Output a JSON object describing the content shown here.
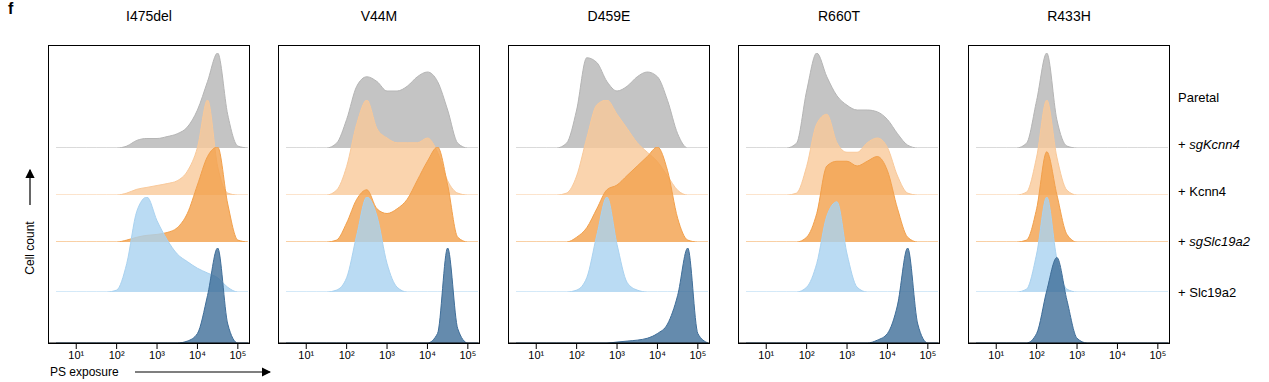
{
  "figure": {
    "panel_label": "f",
    "x_label": "PS exposure",
    "y_label": "Cell count"
  },
  "chart_data": [
    {
      "type": "area",
      "title": "I475del",
      "log": "x",
      "tick_labels": "x",
      "x": [
        3.16,
        5.62,
        10,
        17.8,
        31.6,
        56.2,
        100,
        178,
        316,
        562,
        1000,
        1778,
        3162,
        5623,
        10000,
        17783,
        31623,
        56234,
        100000,
        177828
      ],
      "xlim": [
        2,
        200000
      ],
      "xticks": [
        {
          "value": 10,
          "label": "10¹"
        },
        {
          "value": 100,
          "label": "10²"
        },
        {
          "value": 1000,
          "label": "10³"
        },
        {
          "value": 10000,
          "label": "10⁴"
        },
        {
          "value": 100000,
          "label": "10⁵"
        }
      ],
      "ylim": [
        0,
        1
      ],
      "series": [
        {
          "name": "Paretal",
          "color": "#b5b5b5",
          "values": [
            0,
            0,
            0,
            0,
            0,
            0,
            0,
            0.02,
            0.08,
            0.1,
            0.1,
            0.12,
            0.15,
            0.22,
            0.4,
            0.7,
            1,
            0.35,
            0.02,
            0
          ]
        },
        {
          "name": "+ sgKcnn4",
          "color": "#f9c99a",
          "values": [
            0,
            0,
            0,
            0,
            0,
            0,
            0,
            0.02,
            0.06,
            0.08,
            0.1,
            0.12,
            0.15,
            0.25,
            0.5,
            1,
            0.3,
            0.02,
            0,
            0
          ]
        },
        {
          "name": "+ Kcnn4",
          "color": "#f2a04b",
          "values": [
            0,
            0,
            0,
            0,
            0,
            0,
            0,
            0.02,
            0.05,
            0.07,
            0.08,
            0.1,
            0.15,
            0.3,
            0.6,
            0.9,
            1,
            0.4,
            0.02,
            0
          ]
        },
        {
          "name": "+ sgSlc19a2",
          "color": "#a9d2f0",
          "values": [
            0,
            0,
            0,
            0,
            0,
            0,
            0.02,
            0.3,
            0.85,
            1,
            0.75,
            0.55,
            0.4,
            0.32,
            0.25,
            0.2,
            0.15,
            0.05,
            0,
            0
          ]
        },
        {
          "name": "+ Slc19a2",
          "color": "#3f6e99",
          "values": [
            0,
            0,
            0,
            0,
            0,
            0,
            0,
            0,
            0,
            0,
            0,
            0,
            0,
            0.02,
            0.1,
            0.5,
            1,
            0.2,
            0,
            0
          ]
        }
      ]
    },
    {
      "type": "area",
      "title": "V44M",
      "log": "x",
      "tick_labels": "x",
      "x": [
        3.16,
        5.62,
        10,
        17.8,
        31.6,
        56.2,
        100,
        178,
        316,
        562,
        1000,
        1778,
        3162,
        5623,
        10000,
        17783,
        31623,
        56234,
        100000,
        177828
      ],
      "xlim": [
        2,
        200000
      ],
      "xticks": [
        {
          "value": 10,
          "label": "10¹"
        },
        {
          "value": 100,
          "label": "10²"
        },
        {
          "value": 1000,
          "label": "10³"
        },
        {
          "value": 10000,
          "label": "10⁴"
        },
        {
          "value": 100000,
          "label": "10⁵"
        }
      ],
      "ylim": [
        0,
        1
      ],
      "series": [
        {
          "name": "Paretal",
          "color": "#b5b5b5",
          "values": [
            0,
            0,
            0,
            0,
            0,
            0.05,
            0.3,
            0.65,
            0.75,
            0.7,
            0.6,
            0.6,
            0.65,
            0.75,
            0.8,
            0.7,
            0.4,
            0.05,
            0,
            0
          ]
        },
        {
          "name": "+ sgKcnn4",
          "color": "#f9c99a",
          "values": [
            0,
            0,
            0,
            0,
            0,
            0.05,
            0.3,
            0.75,
            1,
            0.7,
            0.6,
            0.55,
            0.55,
            0.55,
            0.6,
            0.45,
            0.15,
            0.02,
            0,
            0
          ]
        },
        {
          "name": "+ Kcnn4",
          "color": "#f2a04b",
          "values": [
            0,
            0,
            0,
            0,
            0,
            0.02,
            0.2,
            0.45,
            0.55,
            0.35,
            0.3,
            0.35,
            0.45,
            0.65,
            0.85,
            1,
            0.6,
            0.05,
            0,
            0
          ]
        },
        {
          "name": "+ sgSlc19a2",
          "color": "#a9d2f0",
          "values": [
            0,
            0,
            0,
            0,
            0,
            0.02,
            0.15,
            0.6,
            1,
            0.8,
            0.3,
            0.05,
            0,
            0,
            0,
            0,
            0,
            0,
            0,
            0
          ]
        },
        {
          "name": "+ Slc19a2",
          "color": "#3f6e99",
          "values": [
            0,
            0,
            0,
            0,
            0,
            0,
            0,
            0,
            0,
            0,
            0,
            0,
            0,
            0,
            0,
            0.1,
            1,
            0.15,
            0,
            0
          ]
        }
      ]
    },
    {
      "type": "area",
      "title": "D459E",
      "log": "x",
      "tick_labels": "x",
      "x": [
        3.16,
        5.62,
        10,
        17.8,
        31.6,
        56.2,
        100,
        178,
        316,
        562,
        1000,
        1778,
        3162,
        5623,
        10000,
        17783,
        31623,
        56234,
        100000,
        177828
      ],
      "xlim": [
        2,
        200000
      ],
      "xticks": [
        {
          "value": 10,
          "label": "10¹"
        },
        {
          "value": 100,
          "label": "10²"
        },
        {
          "value": 1000,
          "label": "10³"
        },
        {
          "value": 10000,
          "label": "10⁴"
        },
        {
          "value": 100000,
          "label": "10⁵"
        }
      ],
      "ylim": [
        0,
        1
      ],
      "series": [
        {
          "name": "Paretal",
          "color": "#b5b5b5",
          "values": [
            0,
            0,
            0,
            0,
            0,
            0.05,
            0.4,
            0.95,
            0.9,
            0.7,
            0.6,
            0.65,
            0.75,
            0.8,
            0.75,
            0.5,
            0.15,
            0,
            0,
            0
          ]
        },
        {
          "name": "+ sgKcnn4",
          "color": "#f9c99a",
          "values": [
            0,
            0,
            0,
            0,
            0,
            0.02,
            0.2,
            0.6,
            0.95,
            1,
            0.85,
            0.7,
            0.55,
            0.45,
            0.35,
            0.2,
            0.05,
            0,
            0,
            0
          ]
        },
        {
          "name": "+ Kcnn4",
          "color": "#f2a04b",
          "values": [
            0,
            0,
            0,
            0,
            0,
            0,
            0.05,
            0.15,
            0.35,
            0.55,
            0.6,
            0.7,
            0.8,
            0.9,
            1,
            0.75,
            0.25,
            0.02,
            0,
            0
          ]
        },
        {
          "name": "+ sgSlc19a2",
          "color": "#a9d2f0",
          "values": [
            0,
            0,
            0,
            0,
            0,
            0,
            0.02,
            0.15,
            0.6,
            1,
            0.5,
            0.1,
            0.02,
            0,
            0,
            0,
            0,
            0,
            0,
            0
          ]
        },
        {
          "name": "+ Slc19a2",
          "color": "#3f6e99",
          "values": [
            0,
            0,
            0,
            0,
            0,
            0,
            0,
            0,
            0,
            0,
            0.01,
            0.02,
            0.03,
            0.05,
            0.1,
            0.2,
            0.5,
            1,
            0.1,
            0
          ]
        }
      ]
    },
    {
      "type": "area",
      "title": "R660T",
      "log": "x",
      "tick_labels": "x",
      "x": [
        3.16,
        5.62,
        10,
        17.8,
        31.6,
        56.2,
        100,
        178,
        316,
        562,
        1000,
        1778,
        3162,
        5623,
        10000,
        17783,
        31623,
        56234,
        100000,
        177828
      ],
      "xlim": [
        2,
        200000
      ],
      "xticks": [
        {
          "value": 10,
          "label": "10¹"
        },
        {
          "value": 100,
          "label": "10²"
        },
        {
          "value": 1000,
          "label": "10³"
        },
        {
          "value": 10000,
          "label": "10⁴"
        },
        {
          "value": 100000,
          "label": "10⁵"
        }
      ],
      "ylim": [
        0,
        1
      ],
      "series": [
        {
          "name": "Paretal",
          "color": "#b5b5b5",
          "values": [
            0,
            0,
            0,
            0,
            0,
            0.05,
            0.6,
            1,
            0.75,
            0.55,
            0.45,
            0.4,
            0.4,
            0.38,
            0.3,
            0.15,
            0.03,
            0,
            0,
            0
          ]
        },
        {
          "name": "+ sgKcnn4",
          "color": "#f9c99a",
          "values": [
            0,
            0,
            0,
            0,
            0,
            0.02,
            0.3,
            0.75,
            0.85,
            0.55,
            0.45,
            0.45,
            0.55,
            0.6,
            0.5,
            0.2,
            0.02,
            0,
            0,
            0
          ]
        },
        {
          "name": "+ Kcnn4",
          "color": "#f2a04b",
          "values": [
            0,
            0,
            0,
            0,
            0,
            0,
            0.05,
            0.3,
            0.8,
            0.85,
            0.85,
            0.8,
            0.85,
            0.9,
            0.75,
            0.35,
            0.05,
            0,
            0,
            0
          ]
        },
        {
          "name": "+ sgSlc19a2",
          "color": "#a9d2f0",
          "values": [
            0,
            0,
            0,
            0,
            0,
            0,
            0.05,
            0.3,
            0.8,
            0.95,
            0.4,
            0.05,
            0,
            0,
            0,
            0,
            0,
            0,
            0,
            0
          ]
        },
        {
          "name": "+ Slc19a2",
          "color": "#3f6e99",
          "values": [
            0,
            0,
            0,
            0,
            0,
            0,
            0,
            0,
            0,
            0,
            0,
            0,
            0,
            0.03,
            0.1,
            0.4,
            1,
            0.2,
            0,
            0
          ]
        }
      ]
    },
    {
      "type": "area",
      "title": "R433H",
      "log": "x",
      "tick_labels": "x",
      "x": [
        3.16,
        5.62,
        10,
        17.8,
        31.6,
        56.2,
        100,
        178,
        316,
        562,
        1000,
        1778,
        3162,
        5623,
        10000,
        17783,
        31623,
        56234,
        100000,
        177828
      ],
      "xlim": [
        2,
        200000
      ],
      "xticks": [
        {
          "value": 10,
          "label": "10¹"
        },
        {
          "value": 100,
          "label": "10²"
        },
        {
          "value": 1000,
          "label": "10³"
        },
        {
          "value": 10000,
          "label": "10⁴"
        },
        {
          "value": 100000,
          "label": "10⁵"
        }
      ],
      "ylim": [
        0,
        1
      ],
      "series": [
        {
          "name": "Paretal",
          "color": "#b5b5b5",
          "values": [
            0,
            0,
            0,
            0,
            0,
            0.05,
            0.5,
            1,
            0.3,
            0.02,
            0,
            0,
            0,
            0,
            0,
            0,
            0,
            0,
            0,
            0
          ]
        },
        {
          "name": "+ sgKcnn4",
          "color": "#f9c99a",
          "values": [
            0,
            0,
            0,
            0,
            0,
            0.03,
            0.4,
            1,
            0.4,
            0.05,
            0,
            0,
            0,
            0,
            0,
            0,
            0,
            0,
            0,
            0
          ]
        },
        {
          "name": "+ Kcnn4",
          "color": "#f2a04b",
          "values": [
            0,
            0,
            0,
            0,
            0,
            0.02,
            0.35,
            0.95,
            0.5,
            0.08,
            0,
            0,
            0,
            0,
            0,
            0,
            0,
            0,
            0,
            0
          ]
        },
        {
          "name": "+ sgSlc19a2",
          "color": "#a9d2f0",
          "values": [
            0,
            0,
            0,
            0,
            0,
            0.03,
            0.4,
            1,
            0.35,
            0.03,
            0,
            0,
            0,
            0,
            0,
            0,
            0,
            0,
            0,
            0
          ]
        },
        {
          "name": "+ Slc19a2",
          "color": "#3f6e99",
          "values": [
            0,
            0,
            0,
            0,
            0,
            0,
            0.1,
            0.55,
            0.9,
            0.45,
            0.05,
            0,
            0,
            0,
            0,
            0,
            0,
            0,
            0,
            0
          ]
        }
      ]
    }
  ]
}
